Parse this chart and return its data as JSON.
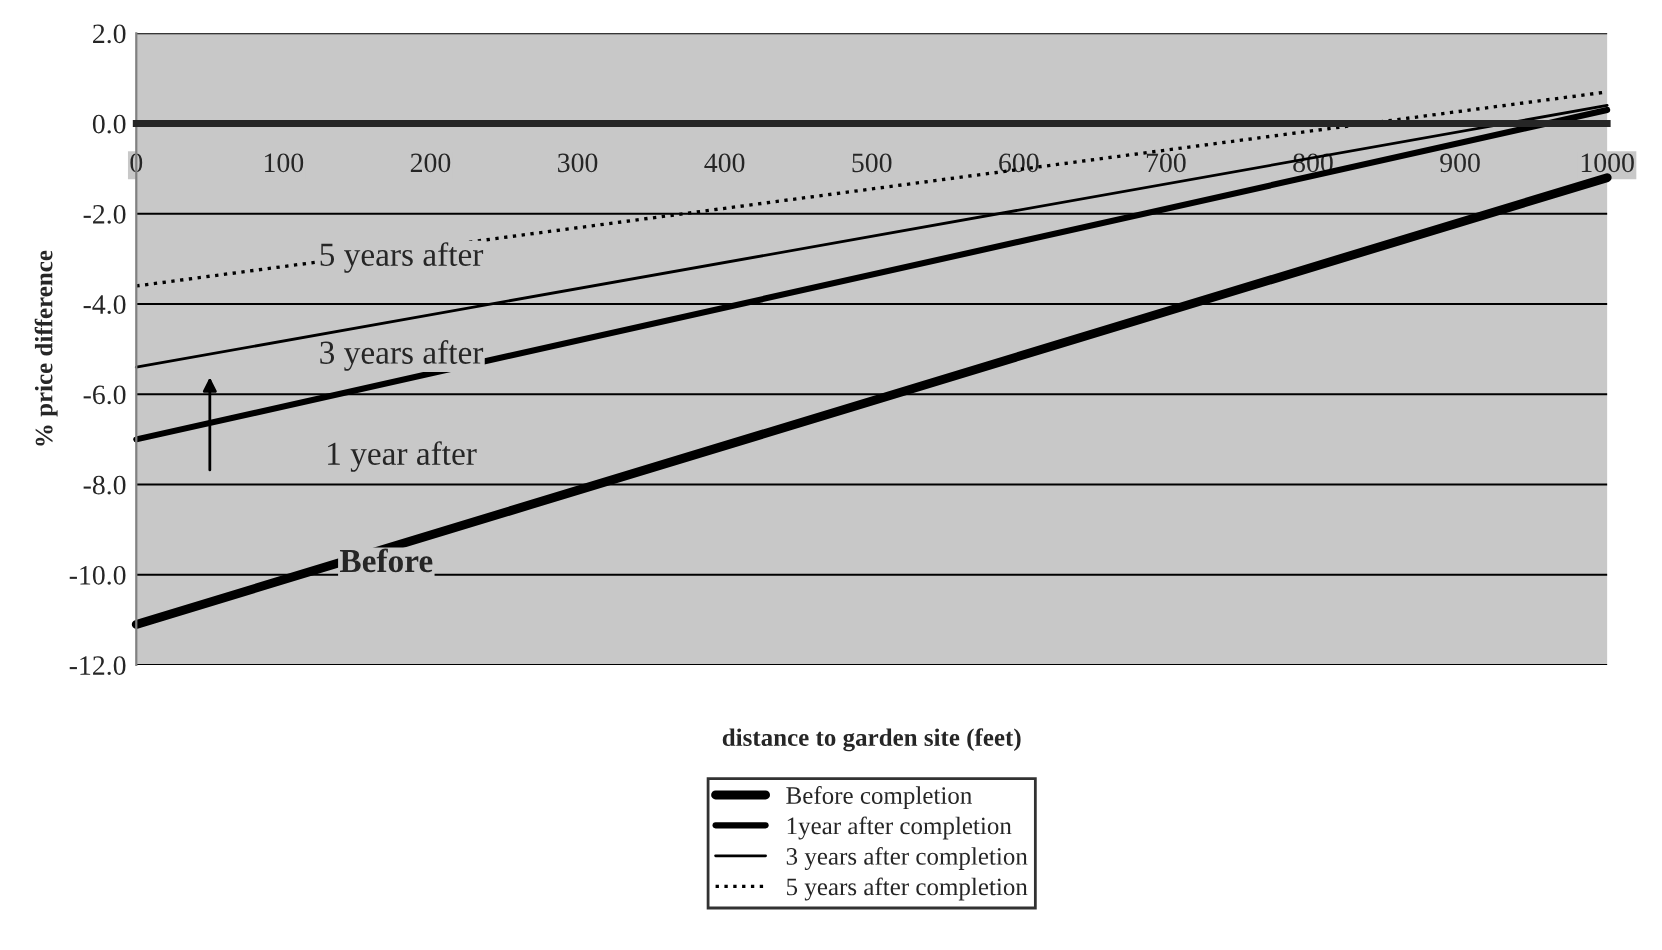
{
  "chart_data": {
    "type": "line",
    "xlabel": "distance to garden site (feet)",
    "ylabel": "% price difference",
    "x": [
      0,
      1000
    ],
    "series": [
      {
        "name": "Before completion",
        "color": "#000000",
        "values": [
          -11.1,
          -1.2
        ],
        "line_style": "solid"
      },
      {
        "name": "1year after completion",
        "color": "#000000",
        "values": [
          -7.0,
          0.3
        ],
        "line_style": "solid"
      },
      {
        "name": "3 years after completion",
        "color": "#000000",
        "values": [
          -5.4,
          0.4
        ],
        "line_style": "solid"
      },
      {
        "name": "5 years after completion",
        "color": "#000000",
        "values": [
          -3.6,
          0.7
        ],
        "line_style": "dotted"
      }
    ],
    "annotations": [
      "5 years after",
      "3 years after",
      "1 year after",
      "Before"
    ],
    "xlim": [
      0,
      1000
    ],
    "xticks": [
      0,
      100,
      200,
      300,
      400,
      500,
      600,
      700,
      800,
      900,
      1000
    ],
    "ylim": [
      -12,
      2
    ],
    "yticks": [
      {
        "value": -12,
        "label": "-12.0"
      },
      {
        "value": -10,
        "label": "-10.0"
      },
      {
        "value": -8,
        "label": "-8.0"
      },
      {
        "value": -6,
        "label": "-6.0"
      },
      {
        "value": -4,
        "label": "-4.0"
      },
      {
        "value": -2,
        "label": "-2.0"
      },
      {
        "value": 0,
        "label": "0.0"
      },
      {
        "value": 2,
        "label": "2.0"
      }
    ],
    "grid": "y",
    "legend": "bottom",
    "marker": "none"
  }
}
